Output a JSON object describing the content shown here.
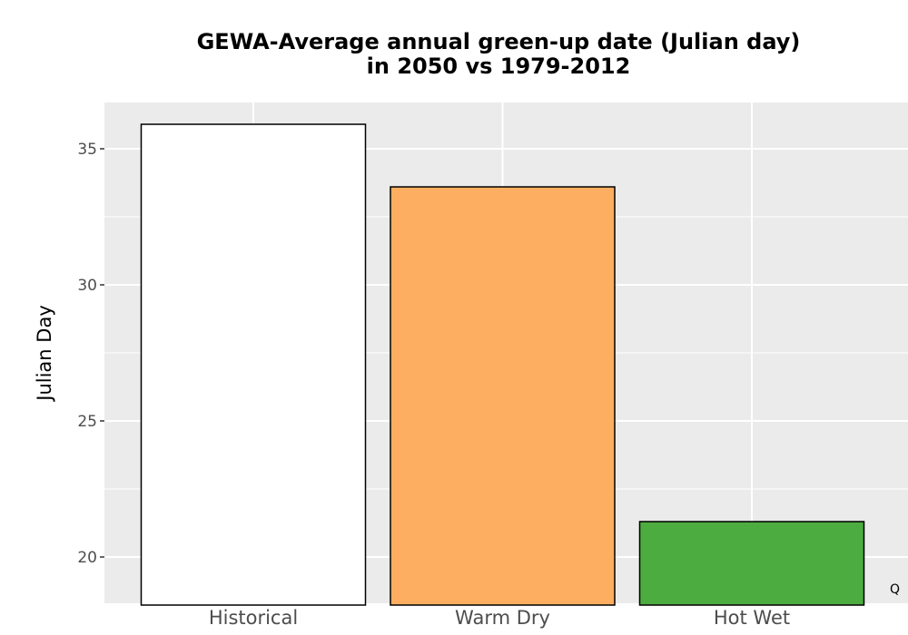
{
  "chart_data": {
    "type": "bar",
    "title_line1": "GEWA-Average annual green-up date (Julian day)",
    "title_line2": "in 2050 vs 1979-2012",
    "ylabel": "Julian Day",
    "categories": [
      "Historical",
      "Warm Dry",
      "Hot Wet"
    ],
    "values": [
      35.9,
      33.6,
      21.3
    ],
    "bar_colors": [
      "#ffffff",
      "#fdae61",
      "#4dac40"
    ],
    "ylim": [
      18.3,
      36.7
    ],
    "yticks": [
      20,
      25,
      30,
      35
    ],
    "ytick_labels": [
      "20",
      "25",
      "30",
      "35"
    ],
    "grid": true,
    "panel_background": "#ebebeb",
    "corner_label": "Q"
  }
}
